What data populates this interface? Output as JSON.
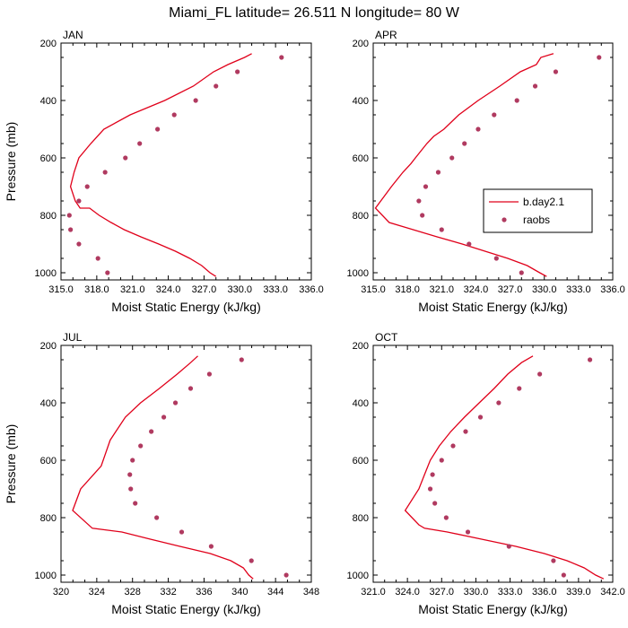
{
  "title": "Miami_FL  latitude= 26.511 N longitude= 80 W",
  "colors": {
    "model": "#e0001a",
    "obs": "#b03a60",
    "axis": "#000000"
  },
  "legend": {
    "model_label": "b.day2.1",
    "obs_label": "raobs",
    "placement": "inside APR panel, center-right"
  },
  "chart_data": [
    {
      "type": "line+scatter",
      "panel": "JAN",
      "xlabel": "Moist Static Energy (kJ/kg)",
      "ylabel": "Pressure (mb)",
      "xlim": [
        315.0,
        336.0
      ],
      "ylim": [
        1025,
        200
      ],
      "x_ticks": [
        315.0,
        318.0,
        321.0,
        324.0,
        327.0,
        330.0,
        333.0,
        336.0
      ],
      "x_tick_labels": [
        "315.0",
        "318.0",
        "321.0",
        "324.0",
        "327.0",
        "330.0",
        "333.0",
        "336.0"
      ],
      "y_ticks": [
        200,
        400,
        600,
        800,
        1000
      ],
      "y_tick_labels": [
        "200",
        "400",
        "600",
        "800",
        "1000"
      ],
      "model": {
        "name": "b.day2.1",
        "x": [
          328.0,
          327.5,
          326.8,
          325.8,
          324.6,
          323.2,
          321.7,
          320.3,
          319.2,
          318.2,
          317.4,
          316.6,
          316.2,
          315.8,
          316.1,
          316.5,
          317.5,
          318.6,
          320.8,
          323.7,
          326.1,
          327.8,
          329.0,
          330.4,
          331.0
        ],
        "y": [
          1013,
          1000,
          975,
          950,
          925,
          900,
          875,
          850,
          825,
          800,
          775,
          775,
          750,
          700,
          650,
          600,
          550,
          500,
          450,
          400,
          350,
          300,
          275,
          250,
          237
        ]
      },
      "obs": {
        "name": "raobs",
        "x": [
          318.9,
          318.1,
          316.5,
          315.8,
          315.7,
          316.5,
          317.2,
          318.7,
          320.4,
          321.6,
          323.1,
          324.5,
          326.3,
          328.0,
          329.8,
          333.5
        ],
        "y": [
          1000,
          950,
          900,
          850,
          800,
          750,
          700,
          650,
          600,
          550,
          500,
          450,
          400,
          350,
          300,
          250
        ]
      }
    },
    {
      "type": "line+scatter",
      "panel": "APR",
      "xlabel": "Moist Static Energy (kJ/kg)",
      "ylabel": "",
      "xlim": [
        315.0,
        336.0
      ],
      "ylim": [
        1025,
        200
      ],
      "x_ticks": [
        315.0,
        318.0,
        321.0,
        324.0,
        327.0,
        330.0,
        333.0,
        336.0
      ],
      "x_tick_labels": [
        "315.0",
        "318.0",
        "321.0",
        "324.0",
        "327.0",
        "330.0",
        "333.0",
        "336.0"
      ],
      "y_ticks": [
        200,
        400,
        600,
        800,
        1000
      ],
      "y_tick_labels": [
        "200",
        "400",
        "600",
        "800",
        "1000"
      ],
      "model": {
        "name": "b.day2.1",
        "x": [
          330.2,
          329.6,
          328.5,
          326.8,
          324.8,
          322.8,
          320.6,
          318.5,
          316.4,
          315.2,
          316.6,
          317.6,
          318.3,
          318.7,
          319.2,
          319.7,
          320.3,
          321.2,
          322.5,
          324.2,
          326.1,
          327.9,
          329.3,
          329.7,
          330.8
        ],
        "y": [
          1013,
          1000,
          975,
          950,
          925,
          900,
          875,
          850,
          825,
          775,
          700,
          650,
          620,
          600,
          575,
          550,
          525,
          500,
          450,
          400,
          350,
          300,
          275,
          250,
          237
        ]
      },
      "obs": {
        "name": "raobs",
        "x": [
          328.0,
          325.8,
          323.4,
          321.0,
          319.3,
          319.0,
          319.6,
          320.7,
          321.9,
          323.0,
          324.2,
          325.6,
          327.6,
          329.2,
          331.0,
          334.8
        ],
        "y": [
          1000,
          950,
          900,
          850,
          800,
          750,
          700,
          650,
          600,
          550,
          500,
          450,
          400,
          350,
          300,
          250
        ]
      }
    },
    {
      "type": "line+scatter",
      "panel": "JUL",
      "xlabel": "Moist Static Energy (kJ/kg)",
      "ylabel": "Pressure (mb)",
      "xlim": [
        320,
        348
      ],
      "ylim": [
        1025,
        200
      ],
      "x_ticks": [
        320,
        324,
        328,
        332,
        336,
        340,
        344,
        348
      ],
      "x_tick_labels": [
        "320",
        "324",
        "328",
        "332",
        "336",
        "340",
        "344",
        "348"
      ],
      "y_ticks": [
        200,
        400,
        600,
        800,
        1000
      ],
      "y_tick_labels": [
        "200",
        "400",
        "600",
        "800",
        "1000"
      ],
      "model": {
        "name": "b.day2.1",
        "x": [
          341.5,
          341.0,
          340.4,
          339.0,
          336.7,
          333.3,
          330.0,
          326.8,
          323.5,
          321.3,
          322.2,
          324.5,
          325.5,
          327.2,
          328.9,
          331.0,
          333.0,
          334.5,
          335.3
        ],
        "y": [
          1013,
          1000,
          975,
          950,
          925,
          900,
          875,
          850,
          837,
          775,
          700,
          620,
          530,
          450,
          400,
          350,
          300,
          260,
          237
        ]
      },
      "obs": {
        "name": "raobs",
        "x": [
          345.2,
          341.3,
          336.8,
          333.5,
          330.7,
          328.3,
          327.8,
          327.7,
          328.0,
          328.9,
          330.1,
          331.5,
          332.8,
          334.5,
          336.6,
          340.2
        ],
        "y": [
          1000,
          950,
          900,
          850,
          800,
          750,
          700,
          650,
          600,
          550,
          500,
          450,
          400,
          350,
          300,
          250
        ]
      }
    },
    {
      "type": "line+scatter",
      "panel": "OCT",
      "xlabel": "Moist Static Energy (kJ/kg)",
      "ylabel": "",
      "xlim": [
        321.0,
        342.0
      ],
      "ylim": [
        1025,
        200
      ],
      "x_ticks": [
        321.0,
        324.0,
        327.0,
        330.0,
        333.0,
        336.0,
        339.0,
        342.0
      ],
      "x_tick_labels": [
        "321.0",
        "324.0",
        "327.0",
        "330.0",
        "333.0",
        "336.0",
        "339.0",
        "342.0"
      ],
      "y_ticks": [
        200,
        400,
        600,
        800,
        1000
      ],
      "y_tick_labels": [
        "200",
        "400",
        "600",
        "800",
        "1000"
      ],
      "model": {
        "name": "b.day2.1",
        "x": [
          341.2,
          340.5,
          339.5,
          338.0,
          336.0,
          333.5,
          330.5,
          327.5,
          325.5,
          325.0,
          323.8,
          325.0,
          325.5,
          326.0,
          326.8,
          327.8,
          329.0,
          330.3,
          331.6,
          332.8,
          334.0,
          335.0
        ],
        "y": [
          1013,
          1000,
          975,
          950,
          925,
          900,
          875,
          850,
          837,
          825,
          775,
          700,
          650,
          600,
          550,
          500,
          450,
          400,
          350,
          300,
          260,
          237
        ]
      },
      "obs": {
        "name": "raobs",
        "x": [
          337.7,
          336.8,
          332.9,
          329.3,
          327.4,
          326.4,
          326.0,
          326.2,
          327.0,
          328.0,
          329.1,
          330.4,
          332.0,
          333.8,
          335.6,
          340.0
        ],
        "y": [
          1000,
          950,
          900,
          850,
          800,
          750,
          700,
          650,
          600,
          550,
          500,
          450,
          400,
          350,
          300,
          250
        ]
      }
    }
  ]
}
